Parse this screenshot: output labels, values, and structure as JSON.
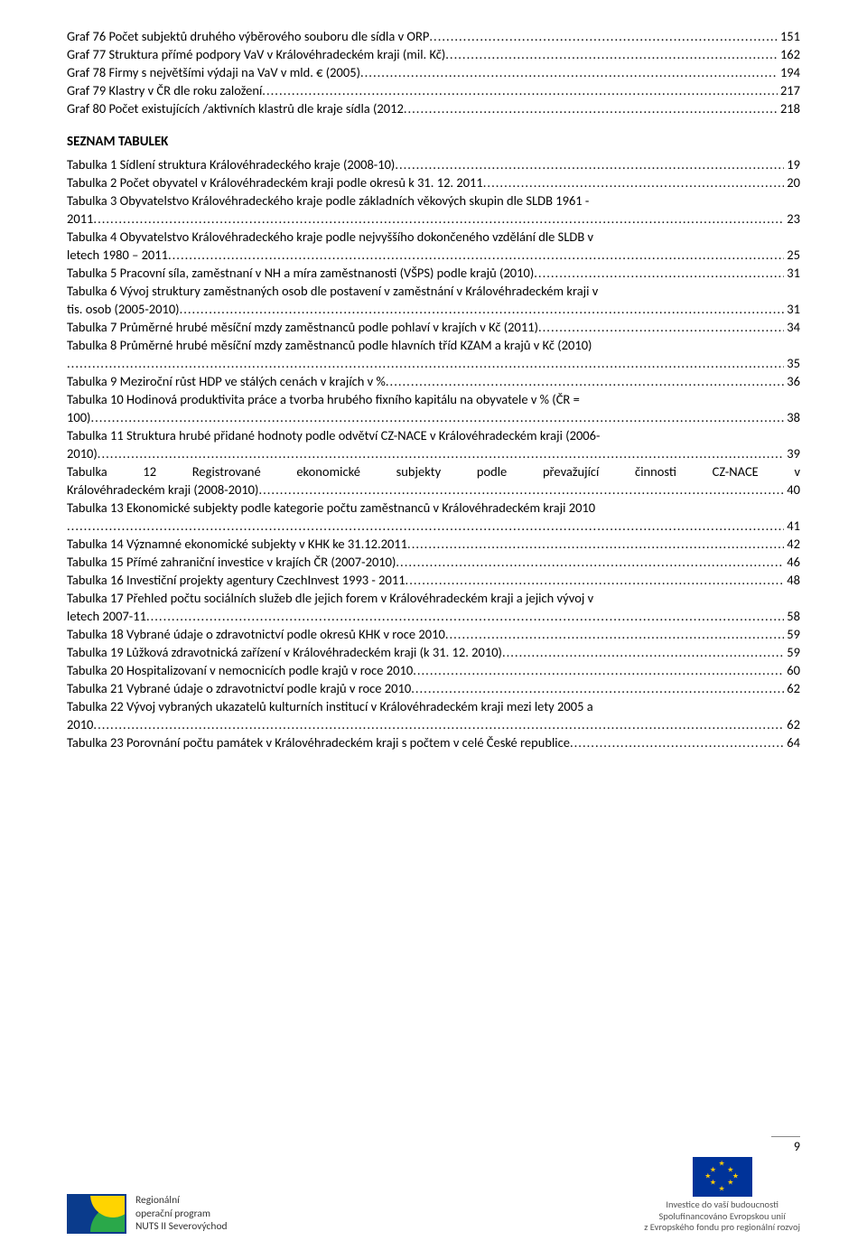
{
  "grafs": [
    {
      "text": "Graf 76 Počet subjektů druhého výběrového souboru dle sídla v ORP",
      "page": "151",
      "wrap": false
    },
    {
      "text": "Graf 77 Struktura přímé podpory VaV v Královéhradeckém kraji (mil. Kč)",
      "page": "162",
      "wrap": false
    },
    {
      "text": "Graf 78 Firmy s největšími výdaji na VaV v mld. € (2005)",
      "page": "194",
      "wrap": false
    },
    {
      "text": "Graf 79 Klastry v ČR dle roku založení",
      "page": "217",
      "wrap": false
    },
    {
      "text": "Graf 80 Počet existujících /aktivních klastrů dle kraje sídla (2012",
      "page": "218",
      "wrap": false
    }
  ],
  "section_title": "SEZNAM TABULEK",
  "tables": [
    {
      "lines": [
        "Tabulka 1 Sídlení struktura Královéhradeckého kraje (2008-10)"
      ],
      "page": "19"
    },
    {
      "lines": [
        "Tabulka 2 Počet obyvatel v Královéhradeckém kraji podle okresů k 31. 12. 2011"
      ],
      "page": "20"
    },
    {
      "lines": [
        "Tabulka 3 Obyvatelstvo Královéhradeckého kraje podle základních věkových skupin dle SLDB 1961 -",
        "2011"
      ],
      "page": "23"
    },
    {
      "lines": [
        "Tabulka 4 Obyvatelstvo Královéhradeckého kraje podle nejvyššího dokončeného vzdělání dle SLDB v",
        "letech 1980 – 2011"
      ],
      "page": "25"
    },
    {
      "lines": [
        "Tabulka 5 Pracovní síla, zaměstnaní v NH a míra zaměstnanosti (VŠPS) podle krajů  (2010)"
      ],
      "page": "31"
    },
    {
      "lines": [
        "Tabulka 6 Vývoj struktury zaměstnaných osob dle postavení v zaměstnání v Královéhradeckém kraji v",
        "tis. osob (2005-2010)"
      ],
      "page": "31"
    },
    {
      "lines": [
        "Tabulka 7 Průměrné hrubé měsíční mzdy zaměstnanců podle pohlaví v krajích v Kč (2011)"
      ],
      "page": "34"
    },
    {
      "lines": [
        "Tabulka 8 Průměrné hrubé měsíční mzdy zaměstnanců podle hlavních tříd KZAM a krajů v Kč (2010)",
        ""
      ],
      "page": "35"
    },
    {
      "lines": [
        "Tabulka 9 Meziroční růst HDP ve stálých cenách v krajích v %"
      ],
      "page": "36"
    },
    {
      "lines": [
        "Tabulka 10 Hodinová produktivita práce a tvorba hrubého fixního kapitálu na obyvatele v % (ČR =",
        "100)"
      ],
      "page": "38"
    },
    {
      "lines": [
        "Tabulka 11 Struktura hrubé přidané hodnoty podle odvětví CZ-NACE v Královéhradeckém kraji (2006-",
        "2010)"
      ],
      "page": "39"
    },
    {
      "lines": [
        "Tabulka  12  Registrované  ekonomické  subjekty  podle  převažující  činnosti  CZ-NACE  v",
        "Královéhradeckém kraji (2008-2010)"
      ],
      "page": "40",
      "justify": true
    },
    {
      "lines": [
        "Tabulka 13 Ekonomické subjekty podle kategorie počtu zaměstnanců v Královéhradeckém kraji 2010",
        ""
      ],
      "page": "41"
    },
    {
      "lines": [
        "Tabulka 14 Významné ekonomické subjekty v KHK ke 31.12.2011"
      ],
      "page": "42"
    },
    {
      "lines": [
        "Tabulka 15 Přímé zahraniční investice v krajích ČR (2007-2010)"
      ],
      "page": "46"
    },
    {
      "lines": [
        "Tabulka 16 Investiční projekty agentury CzechInvest 1993 - 2011"
      ],
      "page": "48"
    },
    {
      "lines": [
        "Tabulka 17 Přehled počtu sociálních služeb dle jejich forem v Královéhradeckém kraji a jejich vývoj v",
        "letech 2007-11"
      ],
      "page": "58"
    },
    {
      "lines": [
        "Tabulka 18 Vybrané údaje o zdravotnictví podle okresů KHK v roce 2010"
      ],
      "page": "59"
    },
    {
      "lines": [
        "Tabulka 19 Lůžková zdravotnická zařízení v Královéhradeckém kraji (k 31. 12. 2010)"
      ],
      "page": "59"
    },
    {
      "lines": [
        "Tabulka 20 Hospitalizovaní v nemocnicích podle krajů v roce 2010"
      ],
      "page": "60"
    },
    {
      "lines": [
        "Tabulka 21 Vybrané údaje o zdravotnictví podle krajů v roce 2010"
      ],
      "page": "62"
    },
    {
      "lines": [
        "Tabulka 22 Vývoj vybraných ukazatelů kulturních institucí v Královéhradeckém kraji mezi lety 2005 a",
        "2010"
      ],
      "page": "62"
    },
    {
      "lines": [
        "Tabulka 23 Porovnání počtu památek v Královéhradeckém kraji s počtem v celé České republice"
      ],
      "page": "64"
    }
  ],
  "footer": {
    "rop_line1": "Regionální",
    "rop_line2": "operační program",
    "rop_line3": "NUTS II Severovýchod",
    "eu_line1": "Investice do vaší budoucnosti",
    "eu_line2": "Spolufinancováno Evropskou unií",
    "eu_line3": "z Evropského fondu pro regionální rozvoj"
  },
  "page_number": "9"
}
